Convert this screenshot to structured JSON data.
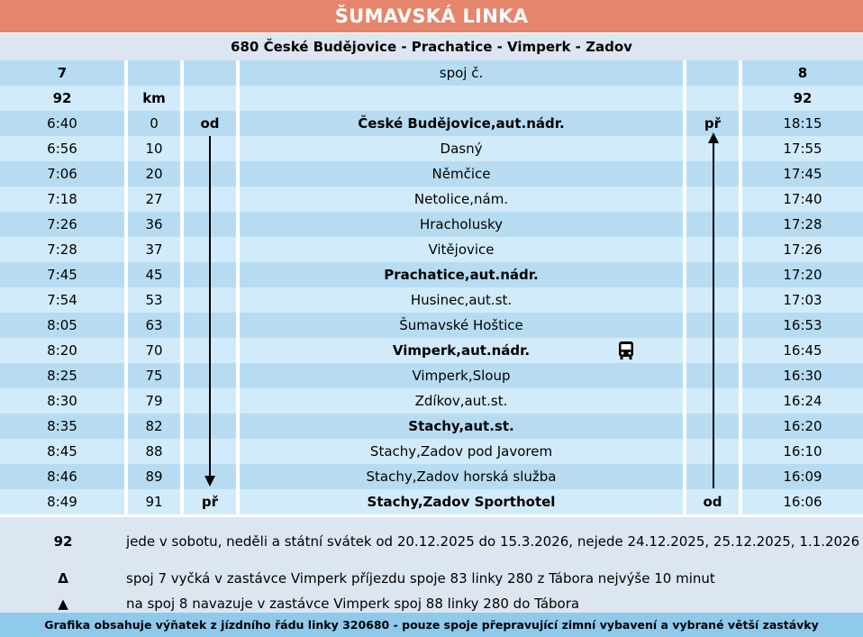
{
  "header": {
    "title": "ŠUMAVSKÁ LINKA",
    "route": "680 České Budějovice - Prachatice - Vimperk - Zadov"
  },
  "table": {
    "row_spoj": {
      "left": "7",
      "label": "spoj č.",
      "right": "8"
    },
    "row_km": {
      "left": "92",
      "km": "km",
      "right": "92"
    },
    "stops": [
      {
        "dep": "6:40",
        "km": "0",
        "mark_left": "od",
        "name": "České Budějovice,aut.nádr.",
        "bold": true,
        "mark_right": "př",
        "arr": "18:15"
      },
      {
        "dep": "6:56",
        "km": "10",
        "mark_left": "",
        "name": "Dasný",
        "bold": false,
        "mark_right": "",
        "arr": "17:55"
      },
      {
        "dep": "7:06",
        "km": "20",
        "mark_left": "",
        "name": "Němčice",
        "bold": false,
        "mark_right": "",
        "arr": "17:45"
      },
      {
        "dep": "7:18",
        "km": "27",
        "mark_left": "",
        "name": "Netolice,nám.",
        "bold": false,
        "mark_right": "",
        "arr": "17:40"
      },
      {
        "dep": "7:26",
        "km": "36",
        "mark_left": "",
        "name": "Hracholusky",
        "bold": false,
        "mark_right": "",
        "arr": "17:28"
      },
      {
        "dep": "7:28",
        "km": "37",
        "mark_left": "",
        "name": "Vitějovice",
        "bold": false,
        "mark_right": "",
        "arr": "17:26"
      },
      {
        "dep": "7:45",
        "km": "45",
        "mark_left": "",
        "name": "Prachatice,aut.nádr.",
        "bold": true,
        "mark_right": "",
        "arr": "17:20"
      },
      {
        "dep": "7:54",
        "km": "53",
        "mark_left": "",
        "name": "Husinec,aut.st.",
        "bold": false,
        "mark_right": "",
        "arr": "17:03"
      },
      {
        "dep": "8:05",
        "km": "63",
        "mark_left": "",
        "name": "Šumavské Hoštice",
        "bold": false,
        "mark_right": "",
        "arr": "16:53"
      },
      {
        "dep": "8:20",
        "km": "70",
        "mark_left": "",
        "name": "Vimperk,aut.nádr.",
        "bold": true,
        "mark_right": "",
        "arr": "16:45",
        "icon": "bus-icon"
      },
      {
        "dep": "8:25",
        "km": "75",
        "mark_left": "",
        "name": "Vimperk,Sloup",
        "bold": false,
        "mark_right": "",
        "arr": "16:30"
      },
      {
        "dep": "8:30",
        "km": "79",
        "mark_left": "",
        "name": "Zdíkov,aut.st.",
        "bold": false,
        "mark_right": "",
        "arr": "16:24"
      },
      {
        "dep": "8:35",
        "km": "82",
        "mark_left": "",
        "name": "Stachy,aut.st.",
        "bold": true,
        "mark_right": "",
        "arr": "16:20"
      },
      {
        "dep": "8:45",
        "km": "88",
        "mark_left": "",
        "name": "Stachy,Zadov pod Javorem",
        "bold": false,
        "mark_right": "",
        "arr": "16:10"
      },
      {
        "dep": "8:46",
        "km": "89",
        "mark_left": "",
        "name": "Stachy,Zadov horská služba",
        "bold": false,
        "mark_right": "",
        "arr": "16:09"
      },
      {
        "dep": "8:49",
        "km": "91",
        "mark_left": "př",
        "name": "Stachy,Zadov Sporthotel",
        "bold": true,
        "mark_right": "od",
        "arr": "16:06"
      }
    ]
  },
  "notes": [
    {
      "symbol": "92",
      "text": "jede v sobotu, neděli a státní svátek od 20.12.2025 do 15.3.2026, nejede 24.12.2025, 25.12.2025, 1.1.2026"
    },
    {
      "symbol": "Δ",
      "text": "spoj 7 vyčká v zastávce Vimperk příjezdu spoje 83 linky 280 z Tábora nejvýše 10 minut"
    },
    {
      "symbol": "▲",
      "text": "na spoj 8 navazuje v zastávce Vimperk spoj 88 linky 280 do Tábora"
    }
  ],
  "footer": "Grafika obsahuje výňatek z jízdního řádu linky 320680 - pouze spoje přepravující zimní vybavení a vybrané větší zastávky",
  "colors": {
    "title_bg": "#e5856b",
    "row_dark": "#b7dcf2",
    "row_light": "#d2ebfa",
    "notes_bg": "#dce6f1",
    "footer_bg": "#8fc9ec"
  },
  "icons": {
    "direction_down": "arrow-down-icon",
    "direction_up": "arrow-up-icon",
    "bus": "bus-icon"
  }
}
